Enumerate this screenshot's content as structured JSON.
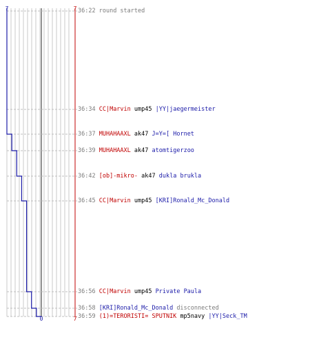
{
  "colors": {
    "team_blue": "#1a1aa8",
    "team_red": "#c00000",
    "grid": "#c8c8c8",
    "center_line": "#7a7a7a",
    "time_text": "#7a7a7a"
  },
  "chart_data": {
    "type": "line",
    "title": "",
    "xlabel": "",
    "ylabel": "",
    "blue_counts": {
      "start": "7",
      "end": "0"
    },
    "red_counts": {
      "start": "7",
      "end": "7"
    },
    "series": [
      {
        "values": [
          7,
          7,
          6,
          5,
          4,
          3,
          2,
          1,
          1,
          0
        ]
      }
    ],
    "events": [
      {
        "time": "36:22",
        "text": "round started",
        "kind": "info"
      },
      {
        "time": "36:34",
        "killer": "CC|Marvin",
        "weapon": "ump45",
        "victim": "|YY|jaegermeister",
        "kind": "kill"
      },
      {
        "time": "36:37",
        "killer": "MUHAHAAXL",
        "weapon": "ak47",
        "victim": "J=Y=[ Hornet",
        "kind": "kill"
      },
      {
        "time": "36:39",
        "killer": "MUHAHAAXL",
        "weapon": "ak47",
        "victim": "atomtigerzoo",
        "kind": "kill"
      },
      {
        "time": "36:42",
        "killer": "[ob]-mikro-",
        "weapon": "ak47",
        "victim": "dukla brukla",
        "kind": "kill"
      },
      {
        "time": "36:45",
        "killer": "CC|Marvin",
        "weapon": "ump45",
        "victim": "[KRI]Ronald_Mc_Donald",
        "kind": "kill"
      },
      {
        "time": "36:56",
        "killer": "CC|Marvin",
        "weapon": "ump45",
        "victim": "Private Paula",
        "kind": "kill"
      },
      {
        "time": "36:58",
        "subject": "[KRI]Ronald_Mc_Donald",
        "text": "disconnected",
        "kind": "disconnect"
      },
      {
        "time": "36:59",
        "killer": "(1)=TERORISTI= SPUTNIK",
        "weapon": "mp5navy",
        "victim": "|YY|Seck_TM",
        "kind": "kill"
      }
    ]
  }
}
